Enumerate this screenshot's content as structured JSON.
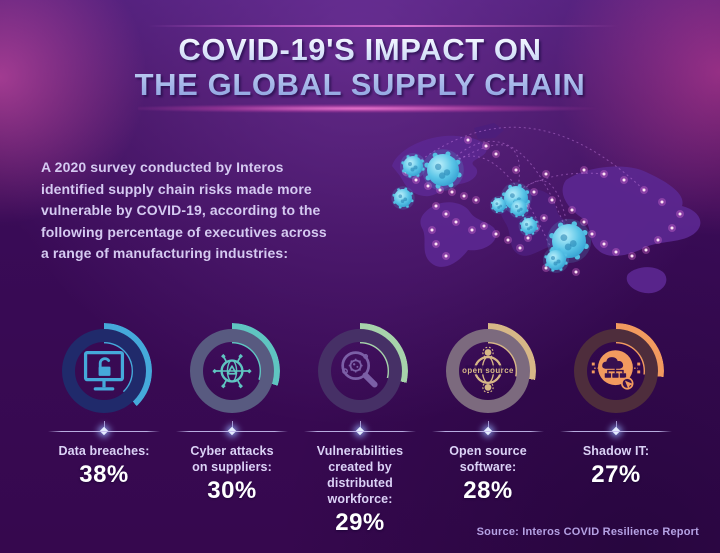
{
  "page": {
    "title_line1": "COVID-19'S IMPACT ON",
    "title_line2": "THE GLOBAL SUPPLY CHAIN",
    "intro_lines": [
      "A 2020 survey conducted by Interos",
      "identified supply chain risks made more",
      "vulnerable by COVID-19, according to the",
      "following percentage of executives across",
      "a range of manufacturing industries:"
    ],
    "source": "Source: Interos COVID Resilience Report"
  },
  "charts": {
    "items": [
      {
        "id": "data-breaches",
        "label_lines": [
          "Data breaches:"
        ],
        "pct": 38,
        "pct_label": "38%",
        "icon": "monitor-unlock-icon",
        "base_color": "#202a6b",
        "arc_color": "#45a9da",
        "icon_color": "#45a9da"
      },
      {
        "id": "cyber-attacks",
        "label_lines": [
          "Cyber attacks",
          "on suppliers:"
        ],
        "pct": 30,
        "pct_label": "30%",
        "icon": "network-globe-icon",
        "base_color": "#585a80",
        "arc_color": "#5fc5c1",
        "icon_color": "#5fc5c1"
      },
      {
        "id": "distributed-workforce",
        "label_lines": [
          "Vulnerabilities",
          "created by distributed",
          "workforce:"
        ],
        "pct": 29,
        "pct_label": "29%",
        "icon": "magnifier-virus-icon",
        "base_color": "#463066",
        "arc_color": "#a7d3ab",
        "icon_color": "#7b5fa6"
      },
      {
        "id": "open-source",
        "label_lines": [
          "Open source",
          "software:"
        ],
        "pct": 28,
        "pct_label": "28%",
        "icon": "open-source-icon",
        "icon_text": "open source",
        "base_color": "#7c6a7e",
        "arc_color": "#d7b787",
        "icon_color": "#d7b787"
      },
      {
        "id": "shadow-it",
        "label_lines": [
          "Shadow IT:"
        ],
        "pct": 27,
        "pct_label": "27%",
        "icon": "shadow-it-cloud-icon",
        "base_color": "#4e2d3c",
        "arc_color": "#f29a5f",
        "icon_color": "#f29a5f"
      }
    ]
  },
  "chart_data": {
    "type": "pie",
    "variant": "donut-small-multiples",
    "title": "COVID-19'S IMPACT ON THE GLOBAL SUPPLY CHAIN",
    "categories": [
      "Data breaches",
      "Cyber attacks on suppliers",
      "Vulnerabilities created by distributed workforce",
      "Open source software",
      "Shadow IT"
    ],
    "values": [
      38,
      30,
      29,
      28,
      27
    ],
    "unit": "%",
    "source": "Interos COVID Resilience Report",
    "colors": [
      "#45a9da",
      "#5fc5c1",
      "#a7d3ab",
      "#d7b787",
      "#f29a5f"
    ]
  }
}
